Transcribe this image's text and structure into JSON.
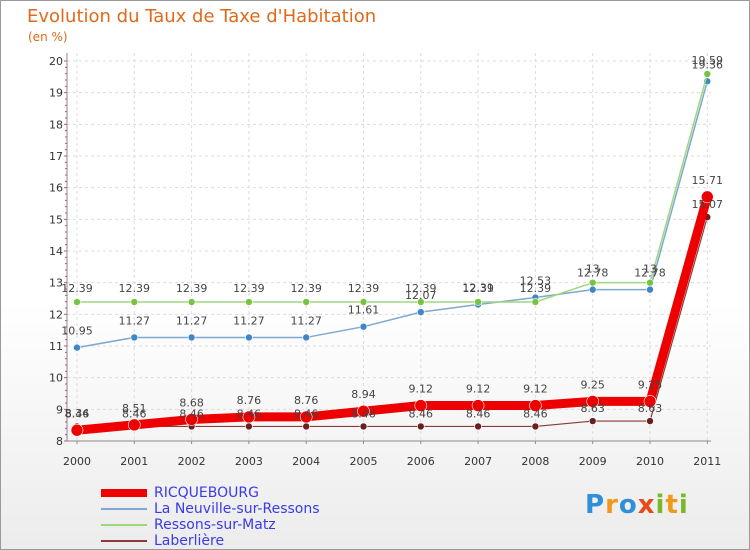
{
  "title": "Evolution du Taux de Taxe d'Habitation",
  "subtitle": "(en %)",
  "logo_text": "Proxiti",
  "chart_data": {
    "type": "line",
    "title": "Evolution du Taux de Taxe d'Habitation",
    "ylabel": "(en %)",
    "ylim": [
      8,
      20
    ],
    "yticks": [
      "8",
      "9",
      "10",
      "11",
      "12",
      "13",
      "14",
      "15",
      "16",
      "17",
      "18",
      "19",
      "20"
    ],
    "categories": [
      "2000",
      "2001",
      "2002",
      "2003",
      "2004",
      "2005",
      "2006",
      "2007",
      "2008",
      "2009",
      "2010",
      "2011"
    ],
    "legend_position": "bottom-left",
    "series": [
      {
        "name": "RICQUEBOURG",
        "color": "#ee0000",
        "values": [
          8.34,
          8.51,
          8.68,
          8.76,
          8.76,
          8.94,
          9.12,
          9.12,
          9.12,
          9.25,
          9.25,
          15.71
        ],
        "labels": [
          "8.34",
          "8.51",
          "8.68",
          "8.76",
          "8.76",
          "8.94",
          "9.12",
          "9.12",
          "9.12",
          "9.25",
          "9.25",
          "15.71"
        ]
      },
      {
        "name": "La Neuville-sur-Ressons",
        "color": "#7fa7d1",
        "values": [
          10.95,
          11.27,
          11.27,
          11.27,
          11.27,
          11.61,
          12.07,
          12.31,
          12.53,
          12.78,
          12.78,
          19.36
        ],
        "labels": [
          "10.95",
          "11.27",
          "11.27",
          "11.27",
          "11.27",
          "11.61",
          "12.07",
          "12.31",
          "12.53",
          "12.78",
          "12.78",
          "19.36"
        ]
      },
      {
        "name": "Ressons-sur-Matz",
        "color": "#9fd77f",
        "values": [
          12.39,
          12.39,
          12.39,
          12.39,
          12.39,
          12.39,
          12.39,
          12.39,
          12.39,
          13,
          13,
          19.59
        ],
        "labels": [
          "12.39",
          "12.39",
          "12.39",
          "12.39",
          "12.39",
          "12.39",
          "12.39",
          "12.39",
          "12.39",
          "13",
          "13",
          "19.59"
        ]
      },
      {
        "name": "Laberlière",
        "color": "#8a3a3a",
        "values": [
          8.46,
          8.46,
          8.46,
          8.46,
          8.46,
          8.46,
          8.46,
          8.46,
          8.46,
          8.63,
          8.63,
          15.07
        ],
        "labels": [
          "8.46",
          "8.46",
          "8.46",
          "8.46",
          "8.46",
          "8.46",
          "8.46",
          "8.46",
          "8.46",
          "8.63",
          "8.63",
          "15.07"
        ]
      }
    ]
  }
}
